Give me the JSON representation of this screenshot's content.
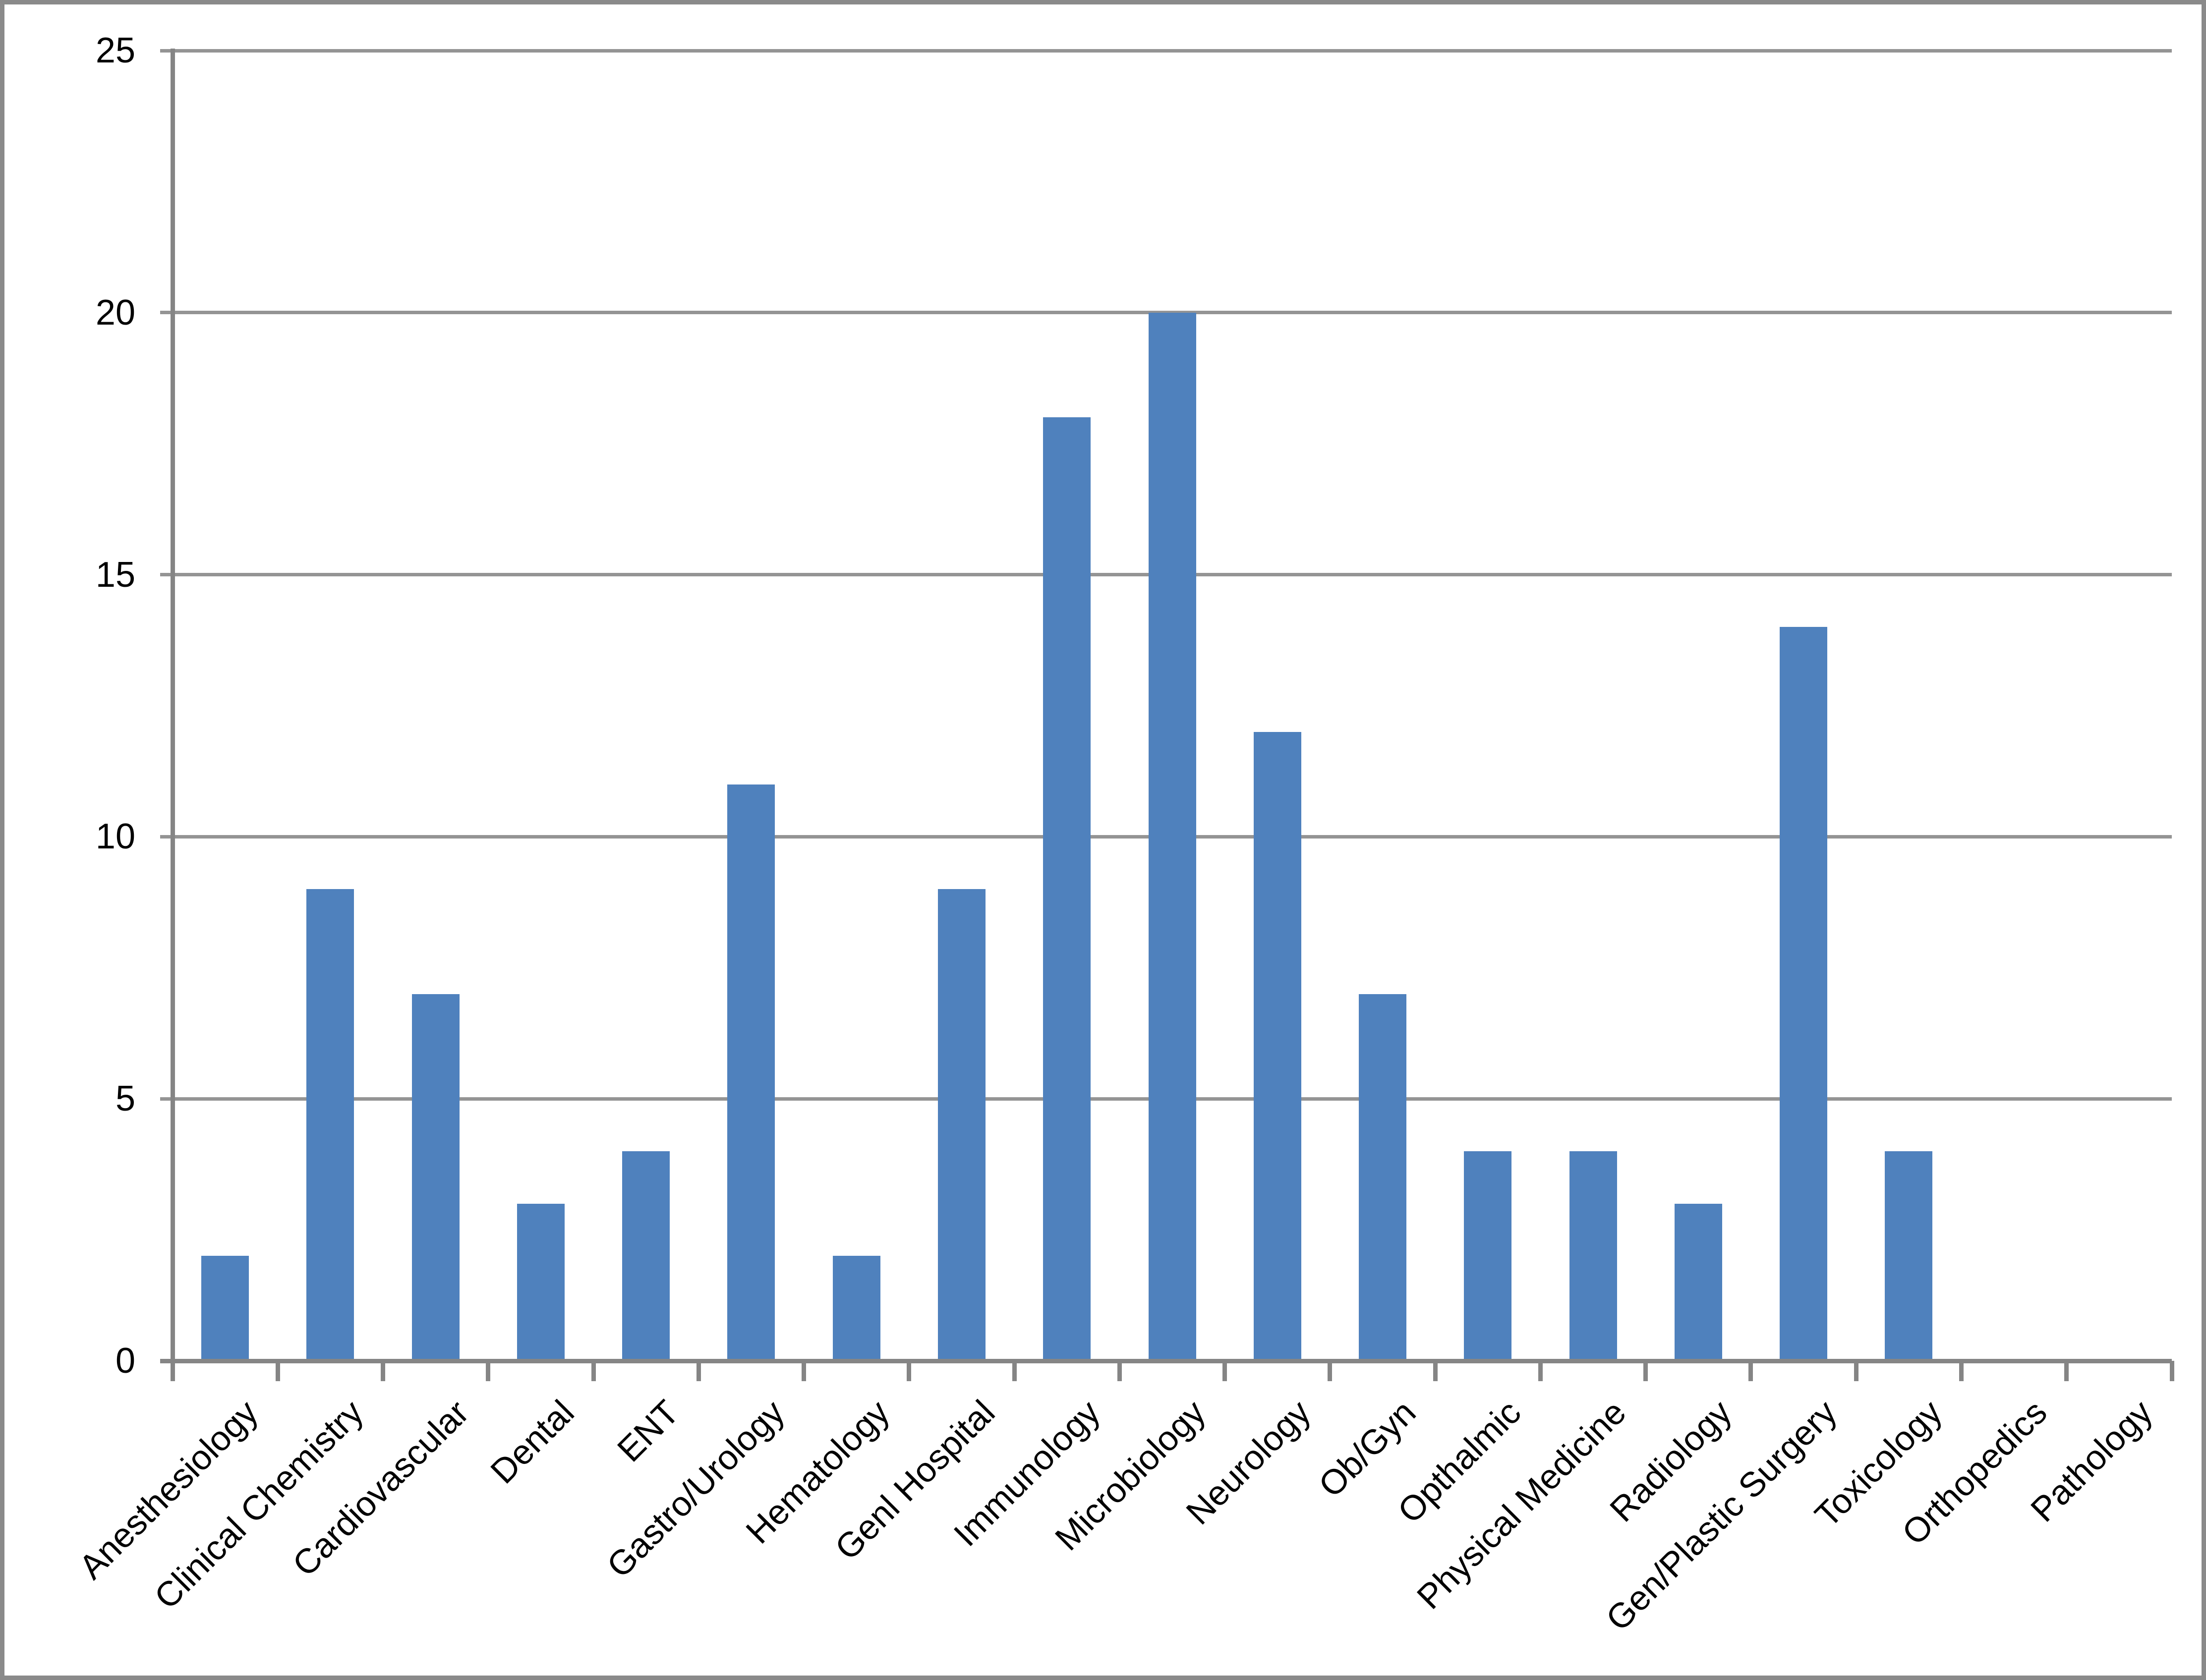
{
  "chart_data": {
    "type": "bar",
    "title": "",
    "xlabel": "",
    "ylabel": "",
    "categories": [
      "Anesthesiology",
      "Clinical Chemistry",
      "Cardiovascular",
      "Dental",
      "ENT",
      "Gastro/Urology",
      "Hematology",
      "Genl Hospital",
      "Immunology",
      "Microbiology",
      "Neurology",
      "Ob/Gyn",
      "Opthalmic",
      "Physical Medicine",
      "Radiology",
      "Gen/Plastic Surgery",
      "Toxicology",
      "Orthopedics",
      "Pathology"
    ],
    "values": [
      2,
      9,
      7,
      3,
      4,
      11,
      2,
      9,
      18,
      20,
      12,
      7,
      4,
      4,
      3,
      14,
      4,
      0,
      0
    ],
    "ylim": [
      0,
      25
    ],
    "yticks": [
      0,
      5,
      10,
      15,
      20,
      25
    ],
    "grid": "horizontal-major",
    "legend": "none",
    "colors": {
      "bar": "#4F81BD",
      "gridline": "#949494",
      "axis": "#858585",
      "frame_border": "#8a8a8a",
      "text": "#000000",
      "background": "#ffffff"
    }
  }
}
